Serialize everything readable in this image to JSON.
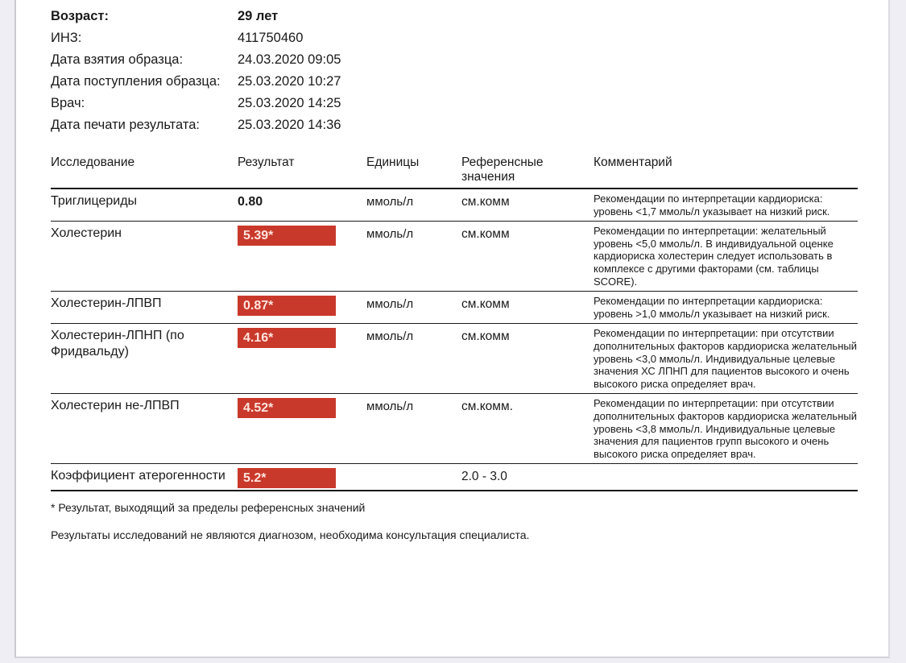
{
  "colors": {
    "flag_background": "#c9392b",
    "flag_text": "#ffe4de",
    "page_background": "#efeef4",
    "paper": "#ffffff",
    "rule": "#1a1a1a"
  },
  "patient_info": {
    "rows": [
      {
        "label": "Возраст:",
        "value": "29 лет",
        "bold": true
      },
      {
        "label": "ИНЗ:",
        "value": "411750460",
        "bold": false
      },
      {
        "label": "Дата взятия образца:",
        "value": "24.03.2020 09:05",
        "bold": false
      },
      {
        "label": "Дата поступления образца:",
        "value": "25.03.2020 10:27",
        "bold": false
      },
      {
        "label": "Врач:",
        "value": "25.03.2020 14:25",
        "bold": false
      },
      {
        "label": "Дата печати результата:",
        "value": "25.03.2020 14:36",
        "bold": false
      }
    ]
  },
  "results_table": {
    "columns": [
      "Исследование",
      "Результат",
      "Единицы",
      "Референсные значения",
      "Комментарий"
    ],
    "rows": [
      {
        "test": "Триглицериды",
        "result": "0.80",
        "flagged": false,
        "units": "ммоль/л",
        "reference": "см.комм",
        "comment": "Рекомендации по интерпретации кардиориска: уровень <1,7 ммоль/л указывает на низкий риск."
      },
      {
        "test": "Холестерин",
        "result": "5.39*",
        "flagged": true,
        "units": "ммоль/л",
        "reference": "см.комм",
        "comment": "Рекомендации по интерпретации: желательный уровень <5,0 ммоль/л. В индивидуальной оценке кардиориска холестерин следует использовать в комплексе с другими факторами (см. таблицы SCORE)."
      },
      {
        "test": "Холестерин-ЛПВП",
        "result": "0.87*",
        "flagged": true,
        "units": "ммоль/л",
        "reference": "см.комм",
        "comment": "Рекомендации по интерпретации кардиориска: уровень >1,0 ммоль/л указывает на низкий риск."
      },
      {
        "test": "Холестерин-ЛПНП (по Фридвальду)",
        "result": "4.16*",
        "flagged": true,
        "units": "ммоль/л",
        "reference": "см.комм",
        "comment": "Рекомендации по интерпретации: при отсутствии дополнительных факторов кардиориска желательный уровень <3,0 ммоль/л. Индивидуальные целевые значения ХС ЛПНП для пациентов высокого и очень высокого риска определяет врач."
      },
      {
        "test": "Холестерин не-ЛПВП",
        "result": "4.52*",
        "flagged": true,
        "units": "ммоль/л",
        "reference": "см.комм.",
        "comment": "Рекомендации по интерпретации: при отсутствии дополнительных факторов кардиориска желательный уровень <3,8 ммоль/л. Индивидуальные целевые значения для пациентов групп высокого и очень высокого риска определяет врач."
      },
      {
        "test": "Коэффициент атерогенности",
        "result": "5.2*",
        "flagged": true,
        "units": "",
        "reference": "2.0 - 3.0",
        "comment": ""
      }
    ]
  },
  "footnotes": {
    "out_of_range_note": "* Результат, выходящий за пределы референсных значений",
    "disclaimer": "Результаты исследований не являются диагнозом, необходима консультация специалиста."
  }
}
